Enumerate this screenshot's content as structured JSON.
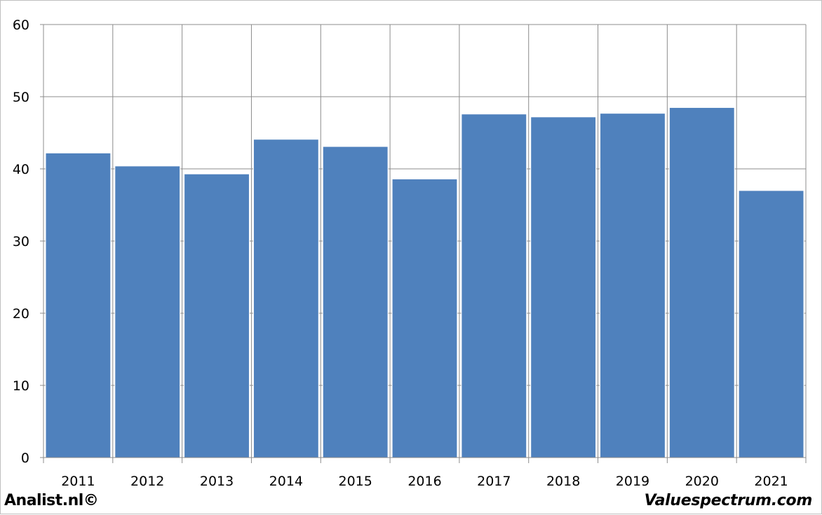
{
  "chart_data": {
    "type": "bar",
    "categories": [
      "2011",
      "2012",
      "2013",
      "2014",
      "2015",
      "2016",
      "2017",
      "2018",
      "2019",
      "2020",
      "2021"
    ],
    "values": [
      42.2,
      40.4,
      39.3,
      44.1,
      43.1,
      38.6,
      47.6,
      47.2,
      47.7,
      48.5,
      37.0
    ],
    "title": "",
    "xlabel": "",
    "ylabel": "",
    "ylim": [
      0,
      60
    ],
    "yticks": [
      "0",
      "10",
      "20",
      "30",
      "40",
      "50",
      "60"
    ],
    "grid": true,
    "legend": "none",
    "bar_color": "#4f81bd"
  },
  "footer": {
    "left": "Analist.nl©",
    "right": "Valuespectrum.com"
  }
}
